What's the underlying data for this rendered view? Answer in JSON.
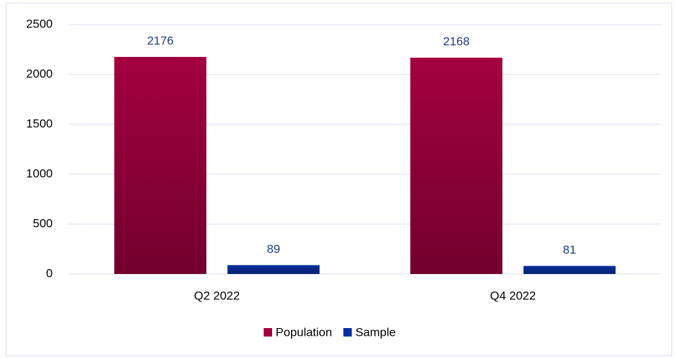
{
  "chart_data": {
    "type": "bar",
    "categories": [
      "Q2 2022",
      "Q4 2022"
    ],
    "series": [
      {
        "name": "Population",
        "color": "#a3003f",
        "values": [
          2176,
          2168
        ]
      },
      {
        "name": "Sample",
        "color": "#0a2f9e",
        "values": [
          89,
          81
        ]
      }
    ],
    "ylim": [
      0,
      2500
    ],
    "yticks": [
      0,
      500,
      1000,
      1500,
      2000,
      2500
    ],
    "grid": true,
    "legend": "bottom"
  }
}
